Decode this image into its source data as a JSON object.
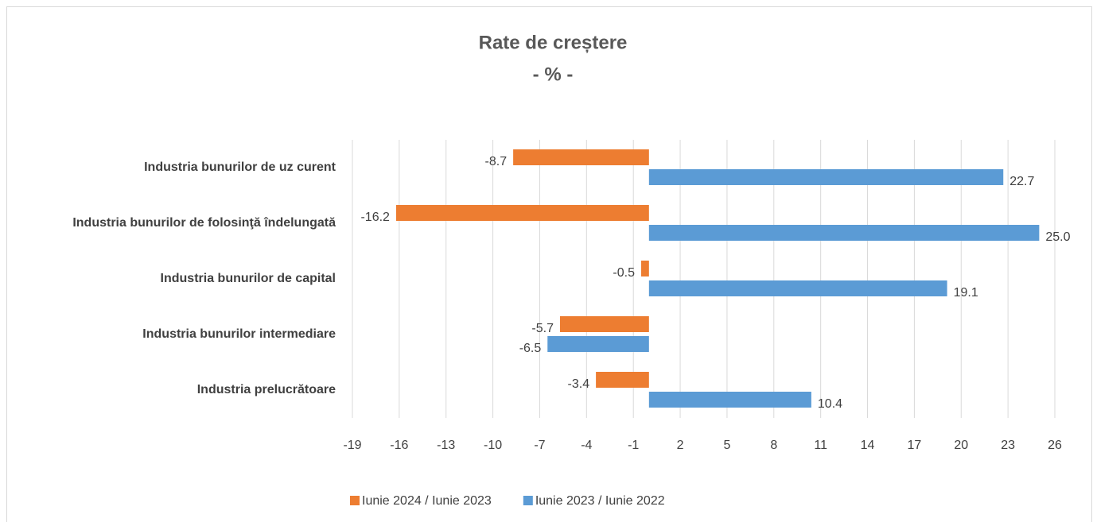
{
  "chart_data": {
    "type": "hbar",
    "title": "Rate de creștere",
    "subtitle": "- % -",
    "categories": [
      "Industria bunurilor de uz curent",
      "Industria bunurilor de folosinţă îndelungată",
      "Industria bunurilor de capital",
      "Industria bunurilor intermediare",
      "Industria prelucrătoare"
    ],
    "series": [
      {
        "name": "Iunie 2024 / Iunie 2023",
        "color": "#ed7d31",
        "values": [
          -8.7,
          -16.2,
          -0.5,
          -5.7,
          -3.4
        ],
        "value_labels": [
          "-8.7",
          "-16.2",
          "-0.5",
          "-5.7",
          "-3.4"
        ]
      },
      {
        "name": "Iunie 2023 / Iunie 2022",
        "color": "#5b9bd5",
        "values": [
          22.7,
          25.0,
          19.1,
          -6.5,
          10.4
        ],
        "value_labels": [
          "22.7",
          "25.0",
          "19.1",
          "-6.5",
          "10.4"
        ]
      }
    ],
    "xlim": [
      -19,
      26
    ],
    "xticks": [
      -19,
      -16,
      -13,
      -10,
      -7,
      -4,
      -1,
      2,
      5,
      8,
      11,
      14,
      17,
      20,
      23,
      26
    ],
    "grid": true,
    "legend": "bottom"
  }
}
